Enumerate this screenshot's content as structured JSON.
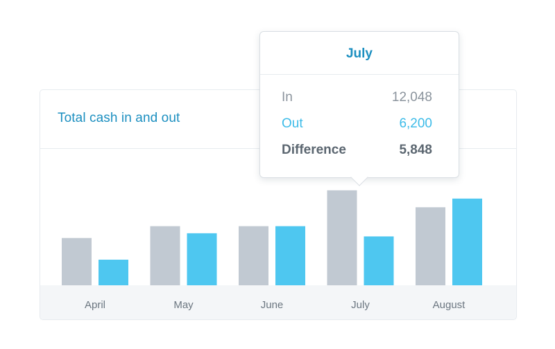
{
  "card": {
    "title": "Total cash in and out"
  },
  "tooltip": {
    "title": "July",
    "rows": [
      {
        "label": "In",
        "value": "12,048"
      },
      {
        "label": "Out",
        "value": "6,200"
      },
      {
        "label": "Difference",
        "value": "5,848"
      }
    ]
  },
  "colors": {
    "in_bar": "#c1c9d2",
    "out_bar": "#4ec7f0",
    "title": "#1c8fc0",
    "axis_band": "#f4f6f8",
    "tick_text": "#6b7680"
  },
  "chart_data": {
    "type": "bar",
    "categories": [
      "April",
      "May",
      "June",
      "July",
      "August"
    ],
    "series": [
      {
        "name": "In",
        "values": [
          6000,
          7500,
          7500,
          12048,
          9900
        ]
      },
      {
        "name": "Out",
        "values": [
          3250,
          6600,
          7500,
          6200,
          11000
        ]
      }
    ],
    "title": "Total cash in and out",
    "xlabel": "",
    "ylabel": "",
    "ylim": [
      0,
      13000
    ],
    "grid": false,
    "legend": "none"
  }
}
